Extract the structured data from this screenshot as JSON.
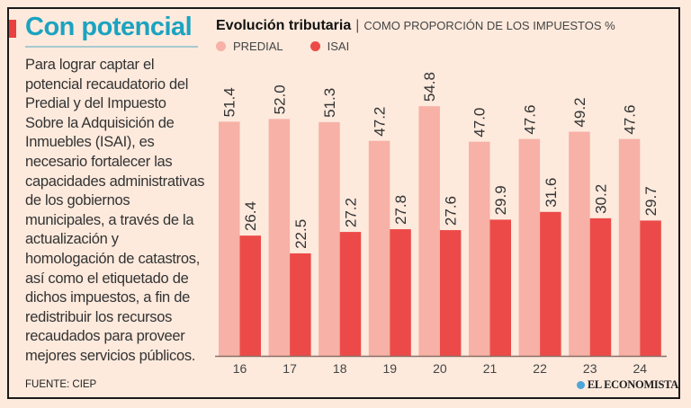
{
  "sidebar": {
    "title": "Con potencial",
    "body": "Para lograr captar el potencial recaudatorio del Predial y del Impuesto Sobre la Adquisición de Inmuebles (ISAI), es necesario fortalecer las capacidades administrativas de los gobiernos municipales, a través de la actualización y homologación de catastros, así como el etiquetado de dichos impuestos, a fin de redistribuir los recursos recaudados para proveer mejores servicios públicos."
  },
  "footer": {
    "source": "FUENTE: CIEP",
    "logo": "EL ECONOMISTA"
  },
  "colors": {
    "predial": "#f7b1a6",
    "isai": "#ec4a48",
    "title": "#1ba3c0",
    "background": "#fdeadd"
  },
  "chart_data": {
    "type": "bar",
    "title": "Evolución tributaria",
    "subtitle": "COMO PROPORCIÓN DE LOS IMPUESTOS %",
    "categories": [
      "16",
      "17",
      "18",
      "19",
      "20",
      "21",
      "22",
      "23",
      "24"
    ],
    "series": [
      {
        "name": "PREDIAL",
        "values": [
          51.4,
          52.0,
          51.3,
          47.2,
          54.8,
          47.0,
          47.6,
          49.2,
          47.6
        ]
      },
      {
        "name": "ISAI",
        "values": [
          26.4,
          22.5,
          27.2,
          27.8,
          27.6,
          29.9,
          31.6,
          30.2,
          29.7
        ]
      }
    ],
    "ylim": [
      0,
      60
    ],
    "grid": false,
    "legend": "top-left",
    "data_labels": "rotated, above bars"
  }
}
